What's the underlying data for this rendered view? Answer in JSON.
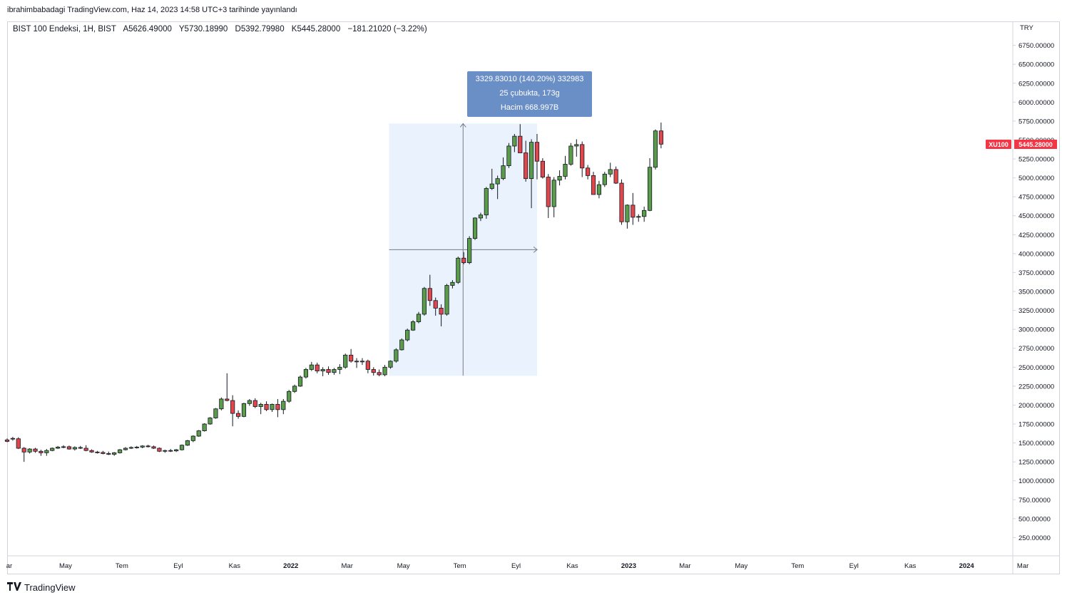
{
  "header": {
    "publish_line": "ibrahimbabadagi TradingView.com, Haz 14, 2023 14:58 UTC+3 tarihinde yayınlandı"
  },
  "legend": {
    "symbol": "BIST 100 Endeksi, 1H, BIST",
    "open": "A5626.49000",
    "high": "Y5730.18990",
    "low": "D5392.79980",
    "close": "K5445.28000",
    "change": "−181.21020 (−3.22%)"
  },
  "currency": "TRY",
  "price_badge": {
    "symbol": "XU100",
    "price": "5445.28000",
    "color": "#f23645"
  },
  "measure": {
    "line1": "3329.83010 (140.20%) 332983",
    "line2": "25 çubukta, 173g",
    "line3": "Hacim 668.997B"
  },
  "footer": {
    "brand": "TradingView"
  },
  "colors": {
    "up": "#5b9c4a",
    "down": "#e0474c",
    "wick": "#131722",
    "measure_fill": "#eaf2fd",
    "tooltip": "#6a8ec6"
  },
  "chart_data": {
    "type": "candlestick",
    "y_scale": "linear",
    "ylim": [
      0,
      7000
    ],
    "y_ticks": [
      "250.00000",
      "500.00000",
      "750.00000",
      "1000.00000",
      "1250.00000",
      "1500.00000",
      "1750.00000",
      "2000.00000",
      "2250.00000",
      "2500.00000",
      "2750.00000",
      "3000.00000",
      "3250.00000",
      "3500.00000",
      "3750.00000",
      "4000.00000",
      "4250.00000",
      "4500.00000",
      "4750.00000",
      "5000.00000",
      "5250.00000",
      "5500.00000",
      "5750.00000",
      "6000.00000",
      "6250.00000",
      "6500.00000",
      "6750.00000"
    ],
    "x_ticks": [
      {
        "label": "ar",
        "year": false
      },
      {
        "label": "May",
        "year": false
      },
      {
        "label": "Tem",
        "year": false
      },
      {
        "label": "Eyl",
        "year": false
      },
      {
        "label": "Kas",
        "year": false
      },
      {
        "label": "2022",
        "year": true
      },
      {
        "label": "Mar",
        "year": false
      },
      {
        "label": "May",
        "year": false
      },
      {
        "label": "Tem",
        "year": false
      },
      {
        "label": "Eyl",
        "year": false
      },
      {
        "label": "Kas",
        "year": false
      },
      {
        "label": "2023",
        "year": true
      },
      {
        "label": "Mar",
        "year": false
      },
      {
        "label": "May",
        "year": false
      },
      {
        "label": "Tem",
        "year": false
      },
      {
        "label": "Eyl",
        "year": false
      },
      {
        "label": "Kas",
        "year": false
      },
      {
        "label": "2024",
        "year": true
      },
      {
        "label": "Mar",
        "year": false
      }
    ],
    "candles": [
      [
        1540,
        1560,
        1510,
        1520
      ],
      [
        1560,
        1580,
        1530,
        1555
      ],
      [
        1555,
        1575,
        1420,
        1430
      ],
      [
        1430,
        1445,
        1250,
        1380
      ],
      [
        1380,
        1430,
        1360,
        1420
      ],
      [
        1420,
        1435,
        1370,
        1390
      ],
      [
        1390,
        1410,
        1330,
        1370
      ],
      [
        1370,
        1420,
        1330,
        1400
      ],
      [
        1400,
        1440,
        1390,
        1430
      ],
      [
        1430,
        1460,
        1420,
        1445
      ],
      [
        1445,
        1470,
        1430,
        1450
      ],
      [
        1450,
        1465,
        1410,
        1420
      ],
      [
        1420,
        1455,
        1400,
        1440
      ],
      [
        1440,
        1460,
        1420,
        1430
      ],
      [
        1430,
        1470,
        1390,
        1400
      ],
      [
        1400,
        1415,
        1370,
        1380
      ],
      [
        1380,
        1395,
        1360,
        1375
      ],
      [
        1375,
        1395,
        1350,
        1360
      ],
      [
        1360,
        1385,
        1340,
        1350
      ],
      [
        1350,
        1380,
        1330,
        1370
      ],
      [
        1370,
        1420,
        1360,
        1410
      ],
      [
        1410,
        1445,
        1400,
        1430
      ],
      [
        1430,
        1455,
        1420,
        1440
      ],
      [
        1440,
        1460,
        1425,
        1445
      ],
      [
        1445,
        1470,
        1430,
        1460
      ],
      [
        1460,
        1475,
        1440,
        1450
      ],
      [
        1450,
        1465,
        1420,
        1430
      ],
      [
        1430,
        1440,
        1380,
        1390
      ],
      [
        1390,
        1410,
        1370,
        1400
      ],
      [
        1400,
        1420,
        1380,
        1395
      ],
      [
        1395,
        1420,
        1380,
        1410
      ],
      [
        1410,
        1480,
        1400,
        1470
      ],
      [
        1470,
        1540,
        1460,
        1530
      ],
      [
        1530,
        1600,
        1510,
        1590
      ],
      [
        1590,
        1670,
        1580,
        1660
      ],
      [
        1660,
        1760,
        1650,
        1750
      ],
      [
        1750,
        1840,
        1740,
        1830
      ],
      [
        1830,
        1960,
        1820,
        1950
      ],
      [
        1950,
        2100,
        1930,
        2080
      ],
      [
        2080,
        2420,
        2050,
        2060
      ],
      [
        2060,
        2130,
        1720,
        1890
      ],
      [
        1890,
        1930,
        1820,
        1850
      ],
      [
        1850,
        2030,
        1840,
        2020
      ],
      [
        2020,
        2080,
        1990,
        2060
      ],
      [
        2060,
        2090,
        1960,
        1980
      ],
      [
        1980,
        2030,
        1880,
        2010
      ],
      [
        2010,
        2050,
        1920,
        1940
      ],
      [
        1940,
        2020,
        1910,
        2010
      ],
      [
        2010,
        2080,
        1840,
        1940
      ],
      [
        1940,
        2080,
        1880,
        2050
      ],
      [
        2050,
        2200,
        2030,
        2180
      ],
      [
        2180,
        2270,
        2160,
        2250
      ],
      [
        2250,
        2390,
        2240,
        2370
      ],
      [
        2370,
        2490,
        2350,
        2470
      ],
      [
        2470,
        2570,
        2450,
        2530
      ],
      [
        2530,
        2560,
        2420,
        2450
      ],
      [
        2450,
        2500,
        2380,
        2470
      ],
      [
        2470,
        2510,
        2400,
        2430
      ],
      [
        2430,
        2490,
        2400,
        2470
      ],
      [
        2470,
        2540,
        2410,
        2500
      ],
      [
        2500,
        2680,
        2480,
        2660
      ],
      [
        2660,
        2740,
        2560,
        2580
      ],
      [
        2580,
        2620,
        2490,
        2570
      ],
      [
        2570,
        2620,
        2530,
        2580
      ],
      [
        2580,
        2600,
        2420,
        2470
      ],
      [
        2470,
        2500,
        2390,
        2430
      ],
      [
        2430,
        2470,
        2380,
        2400
      ],
      [
        2400,
        2530,
        2380,
        2500
      ],
      [
        2500,
        2590,
        2480,
        2580
      ],
      [
        2580,
        2750,
        2560,
        2730
      ],
      [
        2730,
        2880,
        2720,
        2860
      ],
      [
        2860,
        3010,
        2840,
        2990
      ],
      [
        2990,
        3120,
        2980,
        3100
      ],
      [
        3100,
        3230,
        3080,
        3200
      ],
      [
        3200,
        3560,
        3180,
        3540
      ],
      [
        3540,
        3720,
        3310,
        3380
      ],
      [
        3380,
        3420,
        3180,
        3280
      ],
      [
        3280,
        3330,
        3040,
        3200
      ],
      [
        3200,
        3600,
        3180,
        3580
      ],
      [
        3580,
        3650,
        3540,
        3620
      ],
      [
        3620,
        3960,
        3600,
        3940
      ],
      [
        3940,
        4020,
        3860,
        3880
      ],
      [
        3880,
        4230,
        3860,
        4200
      ],
      [
        4200,
        4480,
        4180,
        4470
      ],
      [
        4470,
        4540,
        4430,
        4510
      ],
      [
        4510,
        4880,
        4460,
        4860
      ],
      [
        4860,
        5120,
        4840,
        4920
      ],
      [
        4920,
        5030,
        4720,
        4990
      ],
      [
        4990,
        5270,
        4970,
        5160
      ],
      [
        5160,
        5460,
        5130,
        5420
      ],
      [
        5420,
        5580,
        5340,
        5550
      ],
      [
        5550,
        5710,
        5380,
        5330
      ],
      [
        5330,
        5490,
        4950,
        4990
      ],
      [
        4990,
        5510,
        4600,
        5470
      ],
      [
        5470,
        5580,
        4980,
        5220
      ],
      [
        5220,
        5260,
        4990,
        5010
      ],
      [
        5010,
        5050,
        4470,
        4620
      ],
      [
        4620,
        5010,
        4480,
        4970
      ],
      [
        4970,
        5100,
        4900,
        5020
      ],
      [
        5020,
        5290,
        4980,
        5180
      ],
      [
        5180,
        5460,
        5160,
        5420
      ],
      [
        5420,
        5510,
        5280,
        5440
      ],
      [
        5440,
        5480,
        5010,
        5130
      ],
      [
        5130,
        5170,
        4980,
        5030
      ],
      [
        5030,
        5080,
        4780,
        4780
      ],
      [
        4780,
        4960,
        4730,
        4910
      ],
      [
        4910,
        5080,
        4880,
        5050
      ],
      [
        5050,
        5200,
        5010,
        5110
      ],
      [
        5110,
        5150,
        4920,
        4930
      ],
      [
        4930,
        4980,
        4380,
        4420
      ],
      [
        4420,
        4650,
        4330,
        4640
      ],
      [
        4640,
        4800,
        4380,
        4480
      ],
      [
        4480,
        4520,
        4420,
        4490
      ],
      [
        4490,
        4620,
        4420,
        4570
      ],
      [
        4570,
        5260,
        4560,
        5140
      ],
      [
        5140,
        5640,
        5110,
        5620
      ],
      [
        5620,
        5730,
        5390,
        5445
      ]
    ],
    "measure_range": {
      "from_index": 68,
      "to_index": 93,
      "low": 2387,
      "high": 5717
    }
  }
}
